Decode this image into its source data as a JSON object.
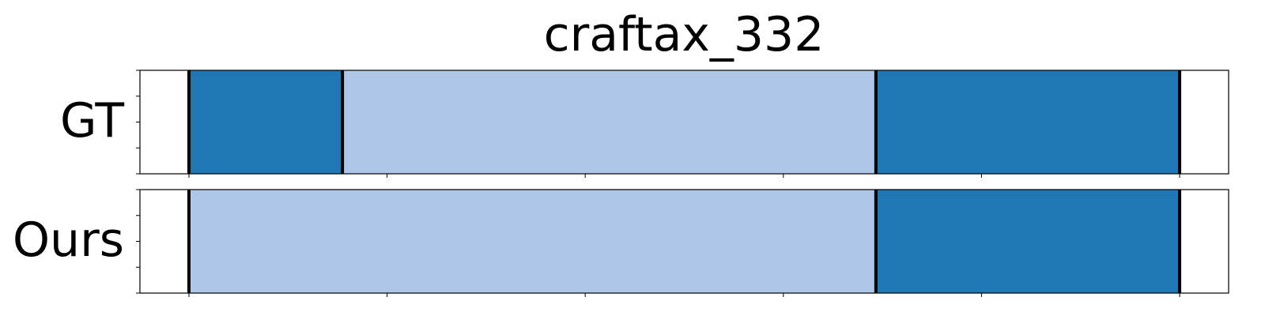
{
  "chart_data": {
    "type": "segmentation-timeline",
    "title": "craftax_332",
    "x_range": [
      0,
      1
    ],
    "grid": false,
    "tick_labels_visible": false,
    "x_ticks": [
      0.045,
      0.227,
      0.409,
      0.591,
      0.773,
      0.955
    ],
    "y_ticks": [
      0,
      0.25,
      0.5,
      0.75,
      1
    ],
    "colors": {
      "dark": "#1f77b4",
      "light": "#aec7e8",
      "boundary": "#000000"
    },
    "rows": [
      {
        "label": "GT",
        "segments": [
          {
            "start": 0.045,
            "end": 0.186,
            "shade": "dark"
          },
          {
            "start": 0.186,
            "end": 0.676,
            "shade": "light"
          },
          {
            "start": 0.676,
            "end": 0.955,
            "shade": "dark"
          }
        ],
        "boundaries": [
          0.045,
          0.186,
          0.676,
          0.955
        ]
      },
      {
        "label": "Ours",
        "segments": [
          {
            "start": 0.045,
            "end": 0.676,
            "shade": "light"
          },
          {
            "start": 0.676,
            "end": 0.955,
            "shade": "dark"
          }
        ],
        "boundaries": [
          0.045,
          0.676,
          0.955
        ]
      }
    ]
  }
}
